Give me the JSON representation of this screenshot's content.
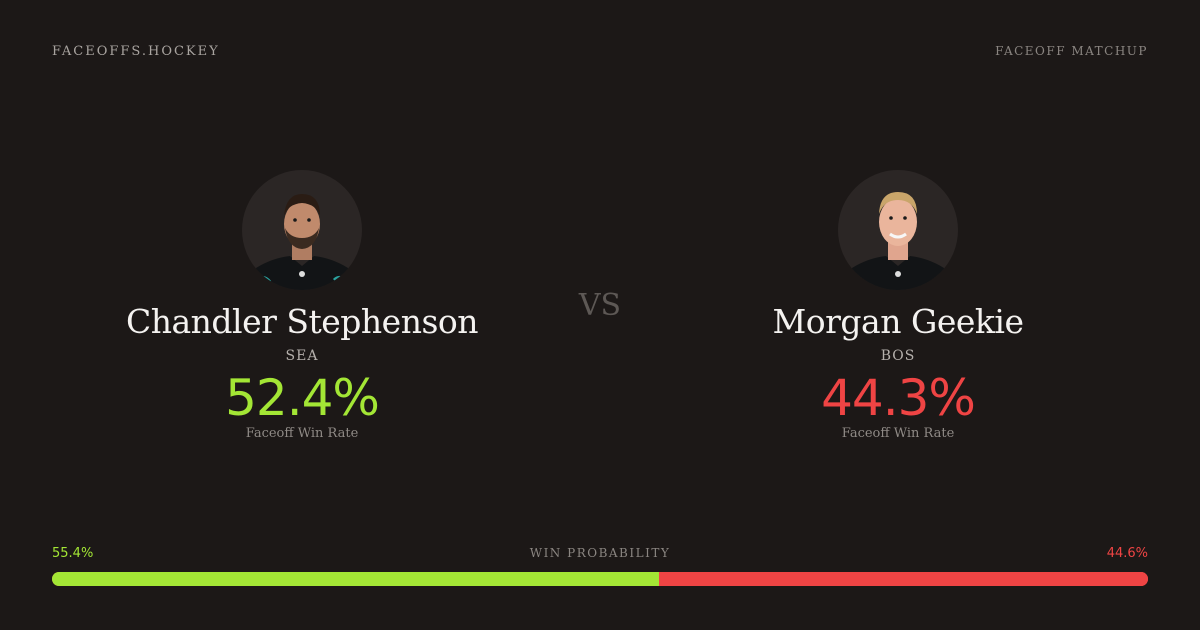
{
  "header": {
    "brand": "FACEOFFS.HOCKEY",
    "context": "FACEOFF MATCHUP"
  },
  "vs_label": "VS",
  "players": [
    {
      "name": "Chandler Stephenson",
      "team": "SEA",
      "faceoff_win_rate": "52.4%",
      "rate_label": "Faceoff Win Rate",
      "rate_color": "#a3e635",
      "headshot_icon": "player-headshot-dark-hair-beard"
    },
    {
      "name": "Morgan Geekie",
      "team": "BOS",
      "faceoff_win_rate": "44.3%",
      "rate_label": "Faceoff Win Rate",
      "rate_color": "#ef4444",
      "headshot_icon": "player-headshot-light-hair"
    }
  ],
  "win_probability": {
    "title": "WIN PROBABILITY",
    "left_label": "55.4%",
    "right_label": "44.6%",
    "left_value": 55.4,
    "right_value": 44.6,
    "left_color": "#a3e635",
    "right_color": "#ef4444"
  }
}
